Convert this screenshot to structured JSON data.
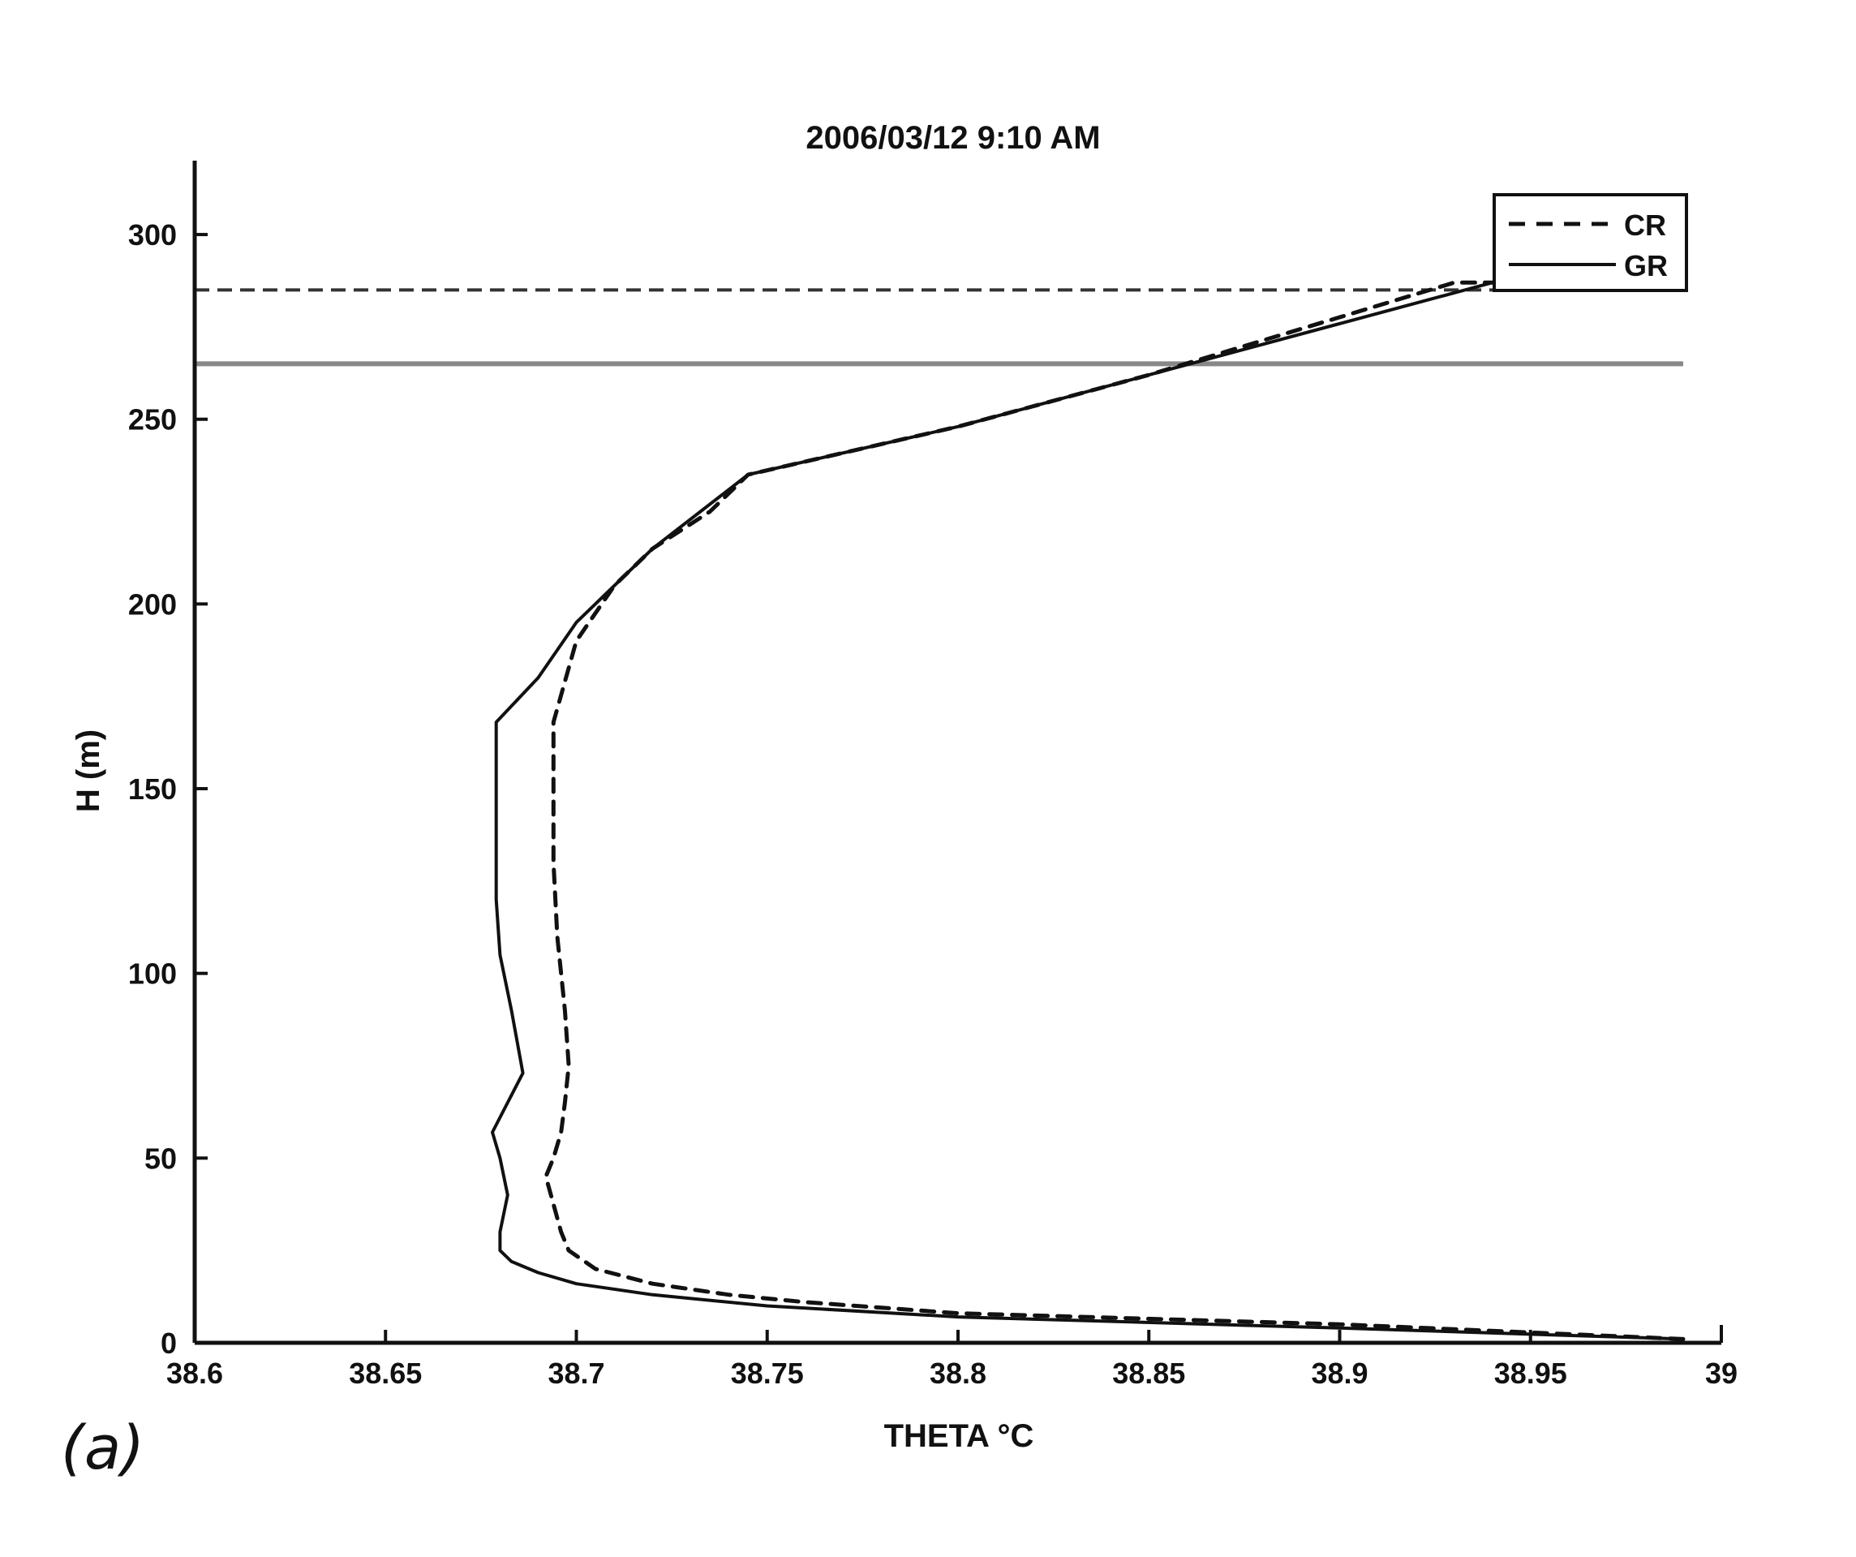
{
  "panel_label": "(a)",
  "chart_data": {
    "type": "line",
    "title": "2006/03/12  9:10 AM",
    "xlabel": "THETA °C",
    "ylabel": "H (m)",
    "xlim": [
      38.6,
      39
    ],
    "ylim": [
      0,
      320
    ],
    "xticks": [
      "38.6",
      "38.65",
      "38.7",
      "38.75",
      "38.8",
      "38.85",
      "38.9",
      "38.95",
      "39"
    ],
    "xtick_values": [
      38.6,
      38.65,
      38.7,
      38.75,
      38.8,
      38.85,
      38.9,
      38.95,
      39
    ],
    "yticks": [
      "0",
      "50",
      "100",
      "150",
      "200",
      "250",
      "300"
    ],
    "ytick_values": [
      0,
      50,
      100,
      150,
      200,
      250,
      300
    ],
    "grid": false,
    "legend": "top-right",
    "series": [
      {
        "name": "CR",
        "style": "dashed",
        "color": "#111111",
        "x": [
          38.99,
          38.9,
          38.8,
          38.76,
          38.74,
          38.72,
          38.705,
          38.698,
          38.696,
          38.692,
          38.694,
          38.696,
          38.697,
          38.698,
          38.697,
          38.695,
          38.694,
          38.694,
          38.694,
          38.7,
          38.71,
          38.72,
          38.735,
          38.745,
          38.8,
          38.85,
          38.93,
          38.99
        ],
        "y": [
          1,
          5,
          8,
          11,
          13,
          16,
          20,
          25,
          30,
          45,
          50,
          57,
          65,
          75,
          90,
          110,
          130,
          150,
          168,
          190,
          205,
          215,
          225,
          235,
          248,
          262,
          287,
          287
        ]
      },
      {
        "name": "GR",
        "style": "solid",
        "color": "#111111",
        "x": [
          38.99,
          38.9,
          38.8,
          38.75,
          38.72,
          38.7,
          38.69,
          38.683,
          38.68,
          38.68,
          38.682,
          38.68,
          38.678,
          38.682,
          38.686,
          38.683,
          38.68,
          38.679,
          38.679,
          38.679,
          38.69,
          38.7,
          38.72,
          38.745,
          38.8,
          38.85,
          38.94,
          38.99
        ],
        "y": [
          1,
          4,
          7,
          10,
          13,
          16,
          19,
          22,
          25,
          30,
          40,
          50,
          57,
          65,
          73,
          90,
          105,
          120,
          140,
          168,
          180,
          195,
          215,
          235,
          248,
          262,
          287,
          287
        ]
      }
    ],
    "reference_lines": [
      {
        "y": 285,
        "style": "dashed",
        "color": "#333333",
        "x_range": [
          38.6,
          38.99
        ]
      },
      {
        "y": 265,
        "style": "solid",
        "color": "#888888",
        "x_range": [
          38.6,
          38.99
        ]
      }
    ]
  }
}
